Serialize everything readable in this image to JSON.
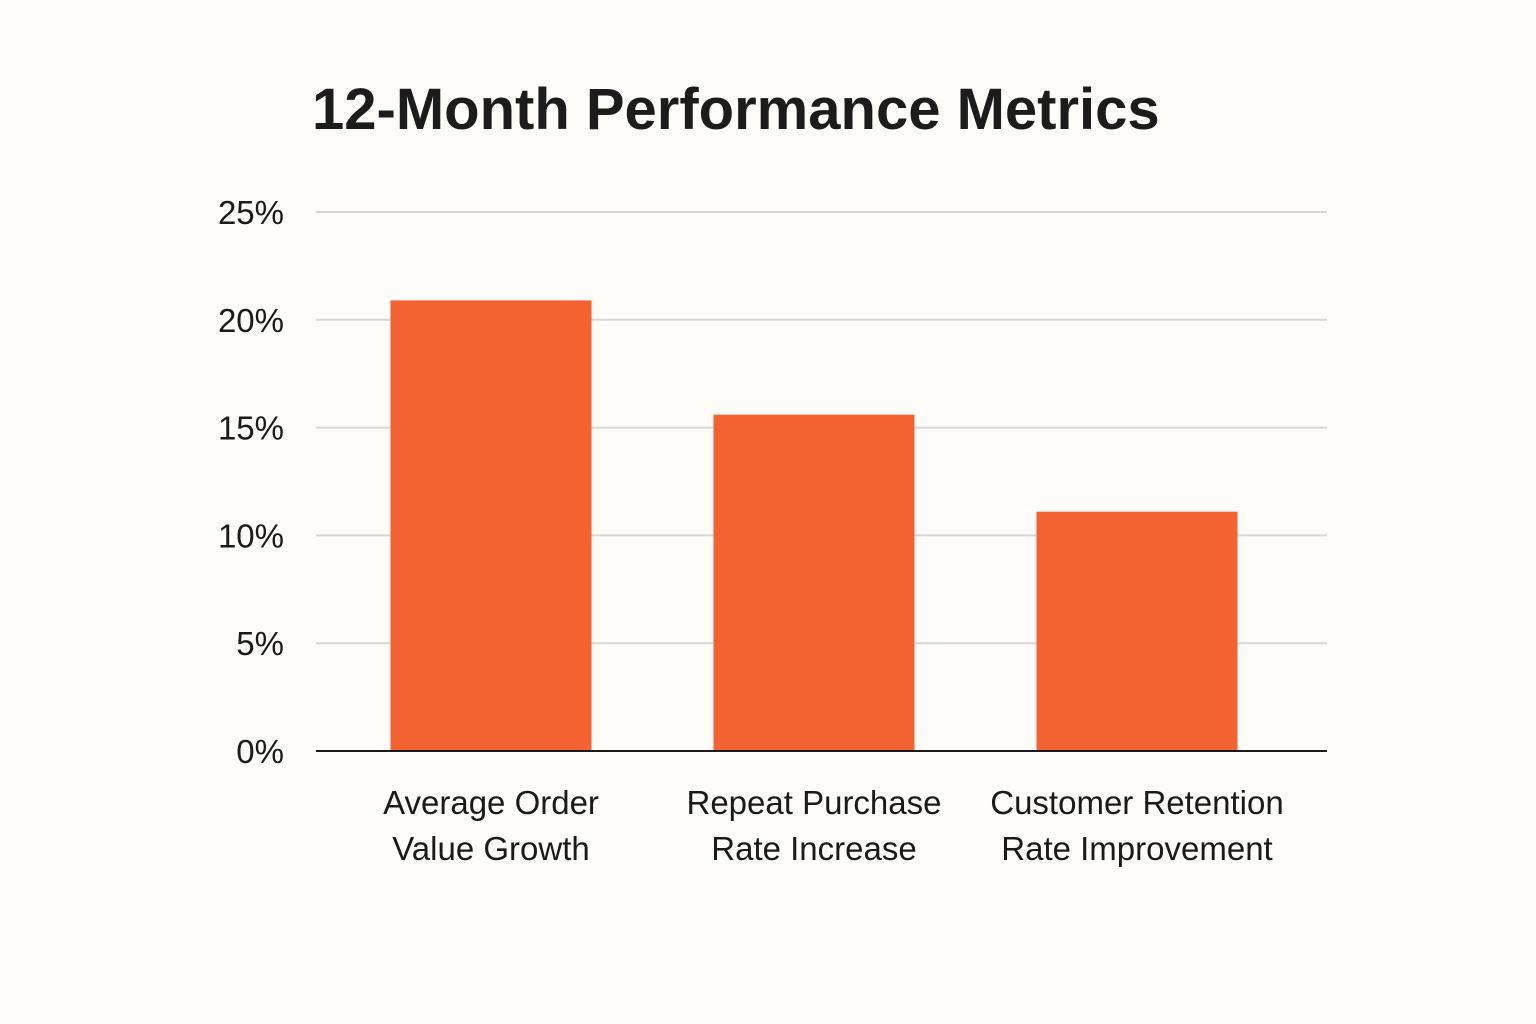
{
  "colors": {
    "background": "#fdfcf8",
    "bar": "#f46232",
    "text": "#1a1a1a",
    "grid": "#d6d6d6"
  },
  "chart_data": {
    "type": "bar",
    "title": "12-Month Performance Metrics",
    "xlabel": "",
    "ylabel": "",
    "ylim": [
      0,
      25
    ],
    "yticks": [
      0,
      5,
      10,
      15,
      20,
      25
    ],
    "ytick_labels": [
      "0%",
      "5%",
      "10%",
      "15%",
      "20%",
      "25%"
    ],
    "grid": true,
    "legend": "none",
    "categories": [
      [
        "Average Order",
        "Value Growth"
      ],
      [
        "Repeat Purchase",
        "Rate Increase"
      ],
      [
        "Customer Retention",
        "Rate Improvement"
      ]
    ],
    "values": [
      20.9,
      15.6,
      11.1
    ]
  }
}
